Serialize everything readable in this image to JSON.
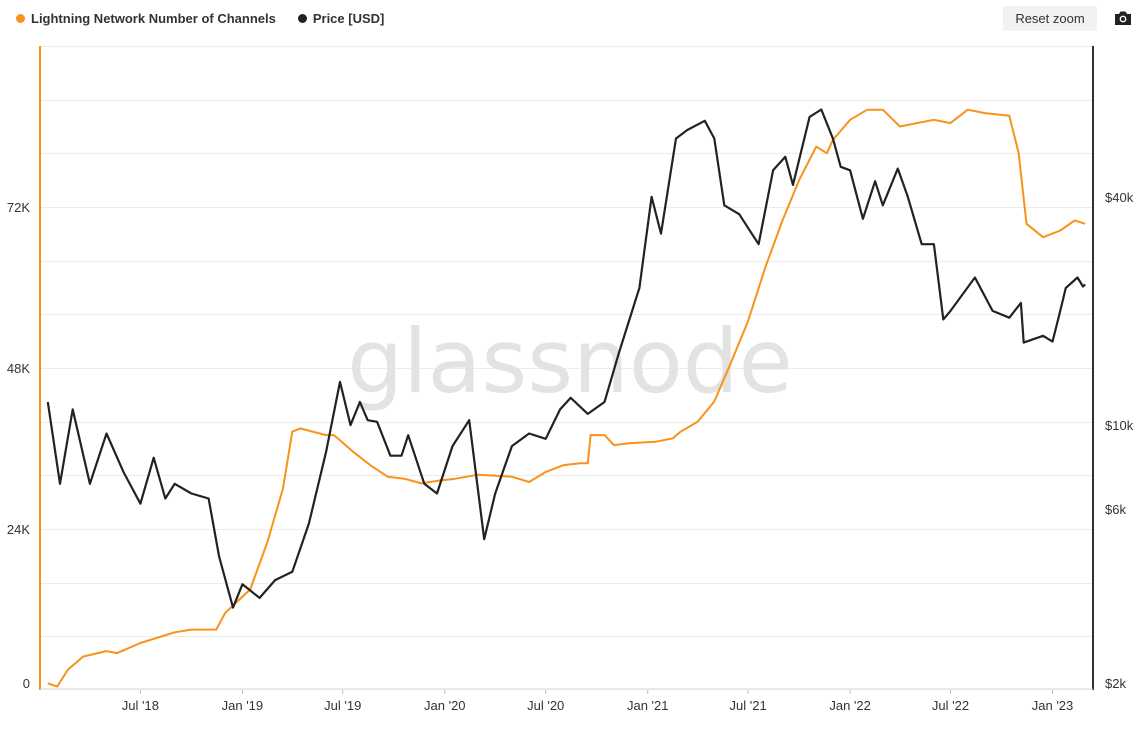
{
  "toolbar": {
    "reset_label": "Reset zoom",
    "camera_icon": "camera-icon"
  },
  "watermark": "glassnode",
  "colors": {
    "channels": "#f7931a",
    "price": "#222222",
    "grid": "#ececec"
  },
  "chart_data": {
    "type": "line",
    "legend_position": "top-left",
    "grid": true,
    "x_axis": {
      "range": [
        "2018-01",
        "2023-03"
      ],
      "tick_labels": [
        "Jul '18",
        "Jan '19",
        "Jul '19",
        "Jan '20",
        "Jul '20",
        "Jan '21",
        "Jul '21",
        "Jan '22",
        "Jul '22",
        "Jan '23"
      ]
    },
    "y_left": {
      "range": [
        0,
        96000
      ],
      "tick_labels": [
        "0",
        "24K",
        "48K",
        "72K"
      ]
    },
    "y_right": {
      "scale": "log",
      "range": [
        2000,
        100000
      ],
      "tick_labels": [
        "$2k",
        "$6k",
        "$10k",
        "$40k"
      ]
    },
    "series": [
      {
        "name": "Lightning Network Number of Channels",
        "axis": "left",
        "points": [
          [
            "2018-01-15",
            1000
          ],
          [
            "2018-02-01",
            500
          ],
          [
            "2018-02-20",
            3000
          ],
          [
            "2018-03-20",
            5000
          ],
          [
            "2018-05-01",
            5800
          ],
          [
            "2018-05-20",
            5500
          ],
          [
            "2018-07-01",
            7000
          ],
          [
            "2018-09-01",
            8600
          ],
          [
            "2018-10-01",
            9000
          ],
          [
            "2018-11-15",
            9000
          ],
          [
            "2018-12-01",
            11500
          ],
          [
            "2019-01-15",
            15000
          ],
          [
            "2019-02-15",
            22000
          ],
          [
            "2019-03-15",
            30000
          ],
          [
            "2019-04-01",
            38500
          ],
          [
            "2019-04-15",
            39000
          ],
          [
            "2019-06-01",
            38000
          ],
          [
            "2019-06-15",
            38000
          ],
          [
            "2019-07-20",
            35500
          ],
          [
            "2019-08-20",
            33500
          ],
          [
            "2019-09-20",
            31800
          ],
          [
            "2019-10-20",
            31500
          ],
          [
            "2019-11-20",
            30800
          ],
          [
            "2019-12-20",
            31200
          ],
          [
            "2020-01-20",
            31500
          ],
          [
            "2020-03-01",
            32100
          ],
          [
            "2020-05-01",
            31800
          ],
          [
            "2020-06-01",
            31000
          ],
          [
            "2020-07-01",
            32500
          ],
          [
            "2020-08-01",
            33500
          ],
          [
            "2020-09-01",
            33800
          ],
          [
            "2020-09-15",
            33800
          ],
          [
            "2020-09-20",
            38000
          ],
          [
            "2020-10-15",
            38000
          ],
          [
            "2020-11-01",
            36500
          ],
          [
            "2020-12-01",
            36800
          ],
          [
            "2021-01-15",
            37000
          ],
          [
            "2021-02-15",
            37500
          ],
          [
            "2021-03-01",
            38500
          ],
          [
            "2021-04-01",
            40000
          ],
          [
            "2021-05-01",
            43000
          ],
          [
            "2021-06-01",
            49000
          ],
          [
            "2021-07-01",
            55000
          ],
          [
            "2021-08-01",
            63000
          ],
          [
            "2021-09-01",
            70000
          ],
          [
            "2021-10-01",
            76000
          ],
          [
            "2021-11-01",
            81000
          ],
          [
            "2021-11-20",
            80000
          ],
          [
            "2021-12-01",
            82000
          ],
          [
            "2022-01-01",
            85000
          ],
          [
            "2022-02-01",
            86500
          ],
          [
            "2022-03-01",
            86500
          ],
          [
            "2022-04-01",
            84000
          ],
          [
            "2022-05-01",
            84500
          ],
          [
            "2022-06-01",
            85000
          ],
          [
            "2022-07-01",
            84500
          ],
          [
            "2022-08-01",
            86500
          ],
          [
            "2022-09-01",
            86000
          ],
          [
            "2022-10-15",
            85600
          ],
          [
            "2022-11-01",
            80000
          ],
          [
            "2022-11-15",
            69500
          ],
          [
            "2022-12-15",
            67500
          ],
          [
            "2023-01-15",
            68500
          ],
          [
            "2023-02-10",
            70000
          ],
          [
            "2023-03-01",
            69500
          ]
        ]
      },
      {
        "name": "Price [USD]",
        "axis": "right",
        "points": [
          [
            "2018-01-15",
            11500
          ],
          [
            "2018-02-06",
            7000
          ],
          [
            "2018-03-01",
            11000
          ],
          [
            "2018-04-01",
            7000
          ],
          [
            "2018-05-01",
            9500
          ],
          [
            "2018-06-01",
            7500
          ],
          [
            "2018-07-01",
            6200
          ],
          [
            "2018-07-25",
            8200
          ],
          [
            "2018-08-15",
            6400
          ],
          [
            "2018-09-01",
            7000
          ],
          [
            "2018-10-01",
            6600
          ],
          [
            "2018-11-01",
            6400
          ],
          [
            "2018-11-20",
            4500
          ],
          [
            "2018-12-15",
            3300
          ],
          [
            "2019-01-01",
            3800
          ],
          [
            "2019-02-01",
            3500
          ],
          [
            "2019-03-01",
            3900
          ],
          [
            "2019-04-01",
            4100
          ],
          [
            "2019-05-01",
            5500
          ],
          [
            "2019-06-01",
            8500
          ],
          [
            "2019-06-26",
            13000
          ],
          [
            "2019-07-15",
            10000
          ],
          [
            "2019-08-01",
            11500
          ],
          [
            "2019-08-15",
            10300
          ],
          [
            "2019-09-01",
            10200
          ],
          [
            "2019-09-25",
            8300
          ],
          [
            "2019-10-15",
            8300
          ],
          [
            "2019-10-27",
            9400
          ],
          [
            "2019-11-25",
            7000
          ],
          [
            "2019-12-18",
            6600
          ],
          [
            "2020-01-15",
            8800
          ],
          [
            "2020-02-14",
            10300
          ],
          [
            "2020-03-12",
            5000
          ],
          [
            "2020-04-01",
            6600
          ],
          [
            "2020-05-01",
            8800
          ],
          [
            "2020-06-01",
            9500
          ],
          [
            "2020-07-01",
            9200
          ],
          [
            "2020-07-27",
            11000
          ],
          [
            "2020-08-15",
            11800
          ],
          [
            "2020-09-15",
            10700
          ],
          [
            "2020-10-15",
            11500
          ],
          [
            "2020-11-10",
            15500
          ],
          [
            "2020-12-17",
            23000
          ],
          [
            "2021-01-08",
            40000
          ],
          [
            "2021-01-25",
            32000
          ],
          [
            "2021-02-21",
            57000
          ],
          [
            "2021-03-13",
            60000
          ],
          [
            "2021-04-14",
            63500
          ],
          [
            "2021-05-01",
            57000
          ],
          [
            "2021-05-19",
            38000
          ],
          [
            "2021-06-15",
            36000
          ],
          [
            "2021-07-20",
            30000
          ],
          [
            "2021-08-15",
            47000
          ],
          [
            "2021-09-06",
            51000
          ],
          [
            "2021-09-20",
            43000
          ],
          [
            "2021-10-20",
            65000
          ],
          [
            "2021-11-10",
            68000
          ],
          [
            "2021-12-01",
            57000
          ],
          [
            "2021-12-15",
            48000
          ],
          [
            "2022-01-01",
            47000
          ],
          [
            "2022-01-24",
            35000
          ],
          [
            "2022-02-15",
            44000
          ],
          [
            "2022-03-01",
            38000
          ],
          [
            "2022-03-28",
            47500
          ],
          [
            "2022-04-15",
            40000
          ],
          [
            "2022-05-10",
            30000
          ],
          [
            "2022-06-01",
            30000
          ],
          [
            "2022-06-18",
            19000
          ],
          [
            "2022-07-01",
            20000
          ],
          [
            "2022-08-14",
            24500
          ],
          [
            "2022-09-15",
            20000
          ],
          [
            "2022-10-15",
            19200
          ],
          [
            "2022-11-05",
            21000
          ],
          [
            "2022-11-10",
            16500
          ],
          [
            "2022-12-15",
            17200
          ],
          [
            "2023-01-01",
            16600
          ],
          [
            "2023-01-13",
            19500
          ],
          [
            "2023-01-25",
            23000
          ],
          [
            "2023-02-15",
            24500
          ],
          [
            "2023-02-25",
            23200
          ],
          [
            "2023-03-01",
            23500
          ]
        ]
      }
    ]
  }
}
